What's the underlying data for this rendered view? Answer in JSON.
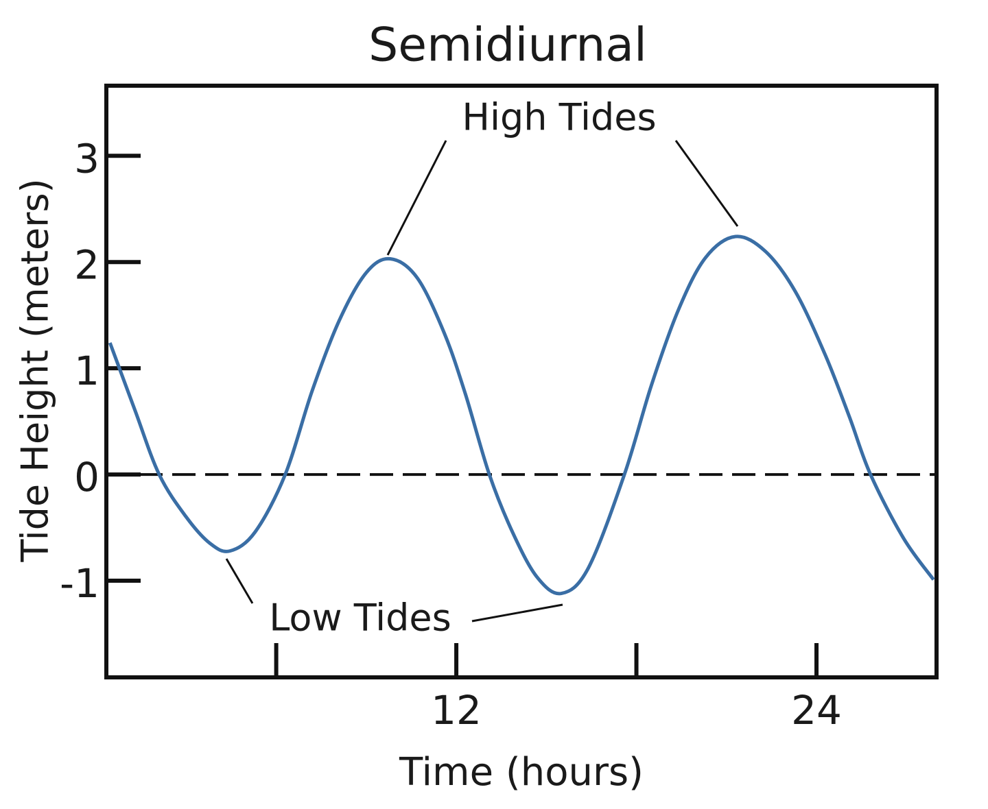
{
  "chart_data": {
    "type": "line",
    "title": "Semidiurnal",
    "x_label": "Time (hours)",
    "y_label": "Tide Height (meters)",
    "x": [
      0.46,
      1.3,
      2.1,
      3.0,
      3.8,
      4.46,
      5.3,
      6.3,
      7.2,
      8.1,
      9.0,
      9.8,
      10.7,
      11.6,
      12.3,
      13.1,
      13.9,
      14.7,
      15.5,
      16.4,
      17.6,
      18.5,
      19.4,
      20.3,
      21.3,
      22.3,
      23.3,
      24.3,
      25.1,
      25.8,
      26.9,
      27.9
    ],
    "values": [
      1.24,
      0.6,
      0,
      -0.4,
      -0.65,
      -0.72,
      -0.54,
      0,
      0.79,
      1.45,
      1.9,
      2.03,
      1.85,
      1.33,
      0.76,
      0,
      -0.56,
      -0.97,
      -1.12,
      -0.88,
      0,
      0.84,
      1.55,
      2.04,
      2.24,
      2.1,
      1.72,
      1.12,
      0.54,
      0,
      -0.6,
      -0.99
    ],
    "color": "#3a6ea5",
    "xlim": [
      0.34,
      28.0
    ],
    "xticks": [
      12,
      24
    ],
    "minor_xticks": [
      6,
      18
    ],
    "ylim": [
      -1.91,
      3.66
    ],
    "yticks": [
      3,
      2,
      1,
      0,
      -1
    ],
    "hline": 0,
    "annotations": [
      "High Tides",
      "Low Tides"
    ]
  }
}
